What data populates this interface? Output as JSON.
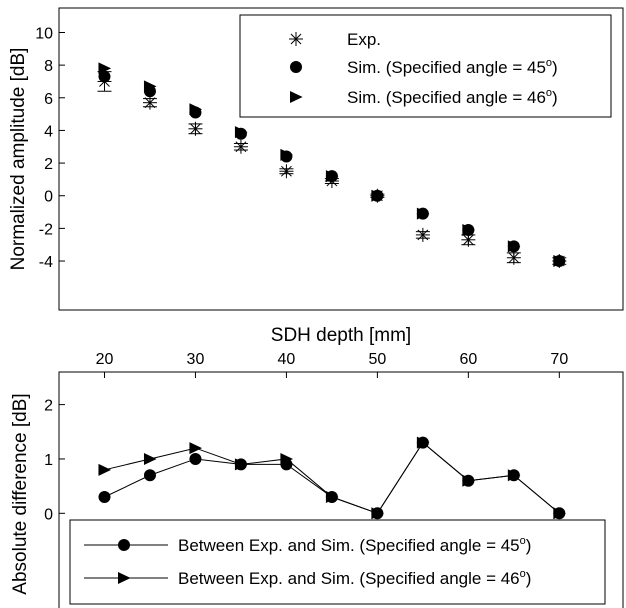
{
  "chart_data": [
    {
      "type": "scatter",
      "xlabel": "SDH depth [mm]",
      "ylabel": "Normalized amplitude [dB]",
      "xlim": [
        15,
        77
      ],
      "ylim": [
        -7,
        11.5
      ],
      "yticks": [
        -4,
        -2,
        0,
        2,
        4,
        6,
        8,
        10
      ],
      "grid": false,
      "legend_position": "top-right",
      "x": [
        20,
        25,
        30,
        35,
        40,
        45,
        50,
        55,
        60,
        65,
        70
      ],
      "series": [
        {
          "name": "Exp.",
          "marker": "asterisk",
          "values": [
            7.0,
            5.7,
            4.1,
            3.0,
            1.5,
            0.9,
            0.0,
            -2.4,
            -2.7,
            -3.8,
            -4.0
          ],
          "error": [
            0.6,
            0.25,
            0.3,
            0.2,
            0.15,
            0.15,
            0.1,
            0.2,
            0.3,
            0.3,
            0.2
          ]
        },
        {
          "name": "Sim. (Specified angle = 45",
          "name_sup": "o",
          "name_end": ")",
          "marker": "circle",
          "values": [
            7.3,
            6.4,
            5.1,
            3.8,
            2.4,
            1.2,
            0.0,
            -1.1,
            -2.1,
            -3.1,
            -4.0
          ]
        },
        {
          "name": "Sim. (Specified angle = 46",
          "name_sup": "o",
          "name_end": ")",
          "marker": "triangle-right",
          "values": [
            7.8,
            6.7,
            5.3,
            3.9,
            2.5,
            1.2,
            0.0,
            -1.1,
            -2.1,
            -3.1,
            -4.0
          ]
        }
      ]
    },
    {
      "type": "line",
      "xlabel": "",
      "ylabel": "Absolute difference [dB]",
      "xlim": [
        15,
        77
      ],
      "ylim": [
        -2,
        2.6
      ],
      "xticks": [
        20,
        30,
        40,
        50,
        60,
        70
      ],
      "yticks": [
        0,
        1,
        2
      ],
      "grid": false,
      "legend_position": "bottom",
      "x": [
        20,
        25,
        30,
        35,
        40,
        45,
        50,
        55,
        60,
        65,
        70
      ],
      "series": [
        {
          "name": "Between Exp. and Sim. (Specified angle = 45",
          "name_sup": "o",
          "name_end": ")",
          "marker": "circle",
          "values": [
            0.3,
            0.7,
            1.0,
            0.9,
            0.9,
            0.3,
            0.0,
            1.3,
            0.6,
            0.7,
            0.0
          ]
        },
        {
          "name": "Between Exp. and Sim. (Specified angle = 46",
          "name_sup": "o",
          "name_end": ")",
          "marker": "triangle-right",
          "values": [
            0.8,
            1.0,
            1.2,
            0.9,
            1.0,
            0.3,
            0.0,
            1.3,
            0.6,
            0.7,
            0.0
          ]
        }
      ]
    }
  ]
}
